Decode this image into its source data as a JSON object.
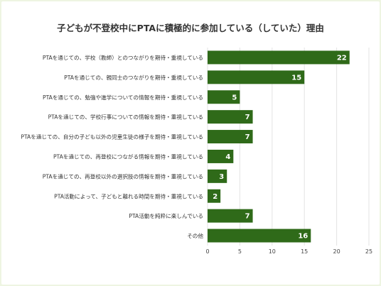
{
  "colors": {
    "bar": "#2f6a19",
    "background": "#eef5e2",
    "grid": "#e3e3e3"
  },
  "chart_data": {
    "type": "bar",
    "orientation": "horizontal",
    "title": "子どもが不登校中にPTAに積極的に参加している（していた）理由",
    "xlabel": "",
    "ylabel": "",
    "xlim": [
      0,
      25
    ],
    "xticks": [
      0,
      5,
      10,
      15,
      20,
      25
    ],
    "grid": true,
    "categories": [
      "PTAを通じての、学校（教師）とのつながりを期待・重視している",
      "PTAを通じての、親同士のつながりを期待・重視している",
      "PTAを通じての、勉強や進学についての情報を期待・重視している",
      "PTAを通じての、学校行事についての情報を期待・重視している",
      "PTAを通じての、自分の子ども以外の児童生徒の様子を期待・重視している",
      "PTAを通じての、再登校につながる情報を期待・重視している",
      "PTAを通じての、再登校以外の選択肢の情報を期待・重視している",
      "PTA活動によって、子どもと離れる時間を期待・重視している",
      "PTA活動を純粋に楽しんでいる",
      "その他"
    ],
    "values": [
      22,
      15,
      5,
      7,
      7,
      4,
      3,
      2,
      7,
      16
    ]
  }
}
